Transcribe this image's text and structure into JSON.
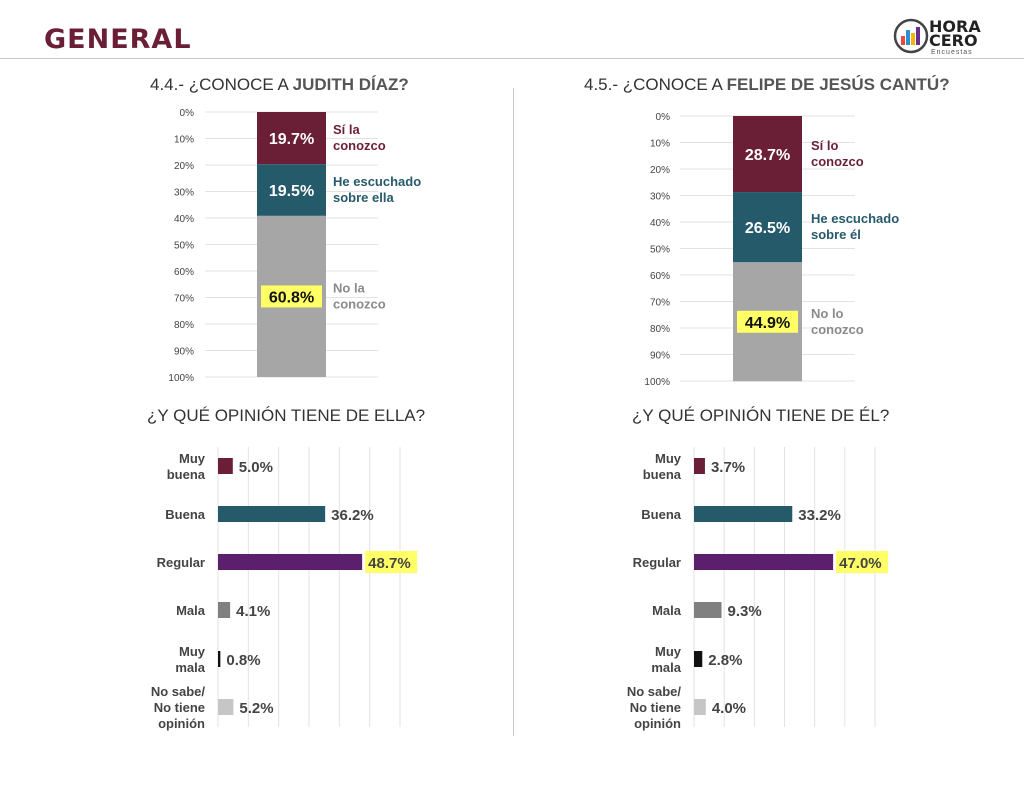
{
  "header": {
    "title": "GENERAL"
  },
  "logo": {
    "line1": "HORA",
    "line2": "CERO",
    "line3": "Encuestas"
  },
  "colors": {
    "maroon": "#6b1f36",
    "teal": "#255a6b",
    "gray": "#a6a6a6",
    "purple": "#5c1f6e",
    "darkgray": "#808080",
    "black": "#111111",
    "lightgray": "#c6c6c6",
    "highlight": "#ffff66"
  },
  "panels": [
    {
      "title_prefix": "4.4.- ¿CONOCE A ",
      "title_name": "JUDITH DÍAZ?",
      "subtitle": "¿Y QUÉ OPINIÓN TIENE DE ELLA?"
    },
    {
      "title_prefix": "4.5.- ¿CONOCE A ",
      "title_name": "FELIPE DE JESÚS CANTÚ?",
      "subtitle": "¿Y QUÉ OPINIÓN TIENE DE ÉL?"
    }
  ],
  "chart_data": [
    {
      "type": "bar",
      "stacked": true,
      "y_ticks": [
        "0%",
        "10%",
        "20%",
        "30%",
        "40%",
        "50%",
        "60%",
        "70%",
        "80%",
        "90%",
        "100%"
      ],
      "ylim": [
        0,
        100
      ],
      "series": [
        {
          "name": "Sí la conozco",
          "values": [
            19.7
          ],
          "label": "19.7%",
          "lines": [
            "Sí la",
            "conozco"
          ],
          "color": "#6b1f36"
        },
        {
          "name": "He escuchado sobre ella",
          "values": [
            19.5
          ],
          "label": "19.5%",
          "lines": [
            "He escuchado",
            "sobre ella"
          ],
          "color": "#255a6b"
        },
        {
          "name": "No la conozco",
          "values": [
            60.8
          ],
          "label": "60.8%",
          "lines": [
            "No la",
            "conozco"
          ],
          "color": "#a6a6a6",
          "highlight": true
        }
      ]
    },
    {
      "type": "bar",
      "stacked": true,
      "y_ticks": [
        "0%",
        "10%",
        "20%",
        "30%",
        "40%",
        "50%",
        "60%",
        "70%",
        "80%",
        "90%",
        "100%"
      ],
      "ylim": [
        0,
        100
      ],
      "series": [
        {
          "name": "Sí lo conozco",
          "values": [
            28.7
          ],
          "label": "28.7%",
          "lines": [
            "Sí lo",
            "conozco"
          ],
          "color": "#6b1f36"
        },
        {
          "name": "He escuchado sobre él",
          "values": [
            26.5
          ],
          "label": "26.5%",
          "lines": [
            "He escuchado",
            "sobre él"
          ],
          "color": "#255a6b"
        },
        {
          "name": "No lo conozco",
          "values": [
            44.9
          ],
          "label": "44.9%",
          "lines": [
            "No lo",
            "conozco"
          ],
          "color": "#a6a6a6",
          "highlight": true
        }
      ]
    },
    {
      "type": "bar",
      "orientation": "horizontal",
      "xlim": [
        0,
        100
      ],
      "categories": [
        "Muy buena",
        "Buena",
        "Regular",
        "Mala",
        "Muy mala",
        "No sabe/ No tiene opinión"
      ],
      "category_lines": [
        [
          "Muy",
          "buena"
        ],
        [
          "Buena"
        ],
        [
          "Regular"
        ],
        [
          "Mala"
        ],
        [
          "Muy",
          "mala"
        ],
        [
          "No sabe/",
          "No tiene",
          "opinión"
        ]
      ],
      "values": [
        5.0,
        36.2,
        48.7,
        4.1,
        0.8,
        5.2
      ],
      "labels": [
        "5.0%",
        "36.2%",
        "48.7%",
        "4.1%",
        "0.8%",
        "5.2%"
      ],
      "colors": [
        "#6b1f36",
        "#255a6b",
        "#5c1f6e",
        "#808080",
        "#111111",
        "#c6c6c6"
      ],
      "highlight_index": 2
    },
    {
      "type": "bar",
      "orientation": "horizontal",
      "xlim": [
        0,
        100
      ],
      "categories": [
        "Muy buena",
        "Buena",
        "Regular",
        "Mala",
        "Muy mala",
        "No sabe/ No tiene opinión"
      ],
      "category_lines": [
        [
          "Muy",
          "buena"
        ],
        [
          "Buena"
        ],
        [
          "Regular"
        ],
        [
          "Mala"
        ],
        [
          "Muy",
          "mala"
        ],
        [
          "No sabe/",
          "No tiene",
          "opinión"
        ]
      ],
      "values": [
        3.7,
        33.2,
        47.0,
        9.3,
        2.8,
        4.0
      ],
      "labels": [
        "3.7%",
        "33.2%",
        "47.0%",
        "9.3%",
        "2.8%",
        "4.0%"
      ],
      "colors": [
        "#6b1f36",
        "#255a6b",
        "#5c1f6e",
        "#808080",
        "#111111",
        "#c6c6c6"
      ],
      "highlight_index": 2
    }
  ]
}
